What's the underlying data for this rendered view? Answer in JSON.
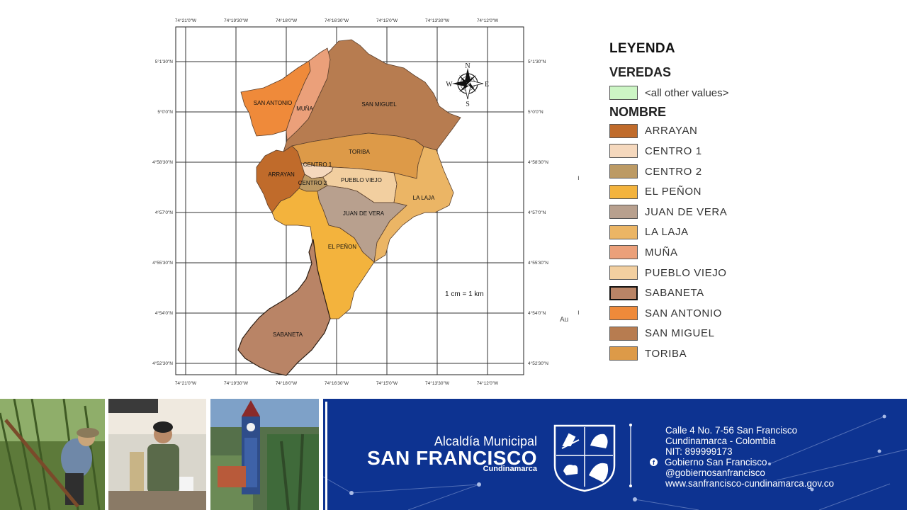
{
  "map": {
    "top_ticks": [
      "74°21'0\"W",
      "74°19'30\"W",
      "74°18'0\"W",
      "74°16'30\"W",
      "74°15'0\"W",
      "74°13'30\"W",
      "74°12'0\"W"
    ],
    "left_ticks": [
      "5°1'30\"N",
      "5°0'0\"N",
      "4°58'30\"N",
      "4°57'0\"N",
      "4°55'30\"N",
      "4°54'0\"N",
      "4°52'30\"N"
    ],
    "compass": {
      "n": "N",
      "s": "S",
      "e": "E",
      "w": "W"
    },
    "scale_text": "1 cm = 1 km",
    "regions": [
      {
        "id": "san-antonio",
        "label": "SAN ANTONIO",
        "color": "#ef8a3a"
      },
      {
        "id": "muna",
        "label": "MUÑA",
        "color": "#eba07a"
      },
      {
        "id": "san-miguel",
        "label": "SAN MIGUEL",
        "color": "#b77c50"
      },
      {
        "id": "toriba",
        "label": "TORIBA",
        "color": "#dd9a48"
      },
      {
        "id": "arrayan",
        "label": "ARRAYAN",
        "color": "#c06b2b"
      },
      {
        "id": "centro1",
        "label": "CENTRO 1",
        "color": "#f5d8bd"
      },
      {
        "id": "centro2",
        "label": "CENTRO 2",
        "color": "#bc9a64"
      },
      {
        "id": "pueblo-viejo",
        "label": "PUEBLO VIEJO",
        "color": "#f2cfa0"
      },
      {
        "id": "la-laja",
        "label": "LA LAJA",
        "color": "#ebb565"
      },
      {
        "id": "juan-de-vera",
        "label": "JUAN DE VERA",
        "color": "#b8a08e"
      },
      {
        "id": "el-penon",
        "label": "EL PEÑON",
        "color": "#f3b33d"
      },
      {
        "id": "sabaneta",
        "label": "SABANETA",
        "color": "#b98466"
      }
    ]
  },
  "legend": {
    "title": "LEYENDA",
    "veredas_heading": "VEREDAS",
    "other_values": {
      "label": "<all other values>",
      "color": "#ccf5c4"
    },
    "nombre_heading": "NOMBRE",
    "items": [
      {
        "label": "ARRAYAN",
        "color": "#c06b2b"
      },
      {
        "label": "CENTRO 1",
        "color": "#f5d8bd"
      },
      {
        "label": "CENTRO 2",
        "color": "#bc9a64"
      },
      {
        "label": "EL PEÑON",
        "color": "#f3b33d"
      },
      {
        "label": "JUAN DE VERA",
        "color": "#b8a08e"
      },
      {
        "label": "LA LAJA",
        "color": "#ebb565"
      },
      {
        "label": "MUÑA",
        "color": "#eba07a"
      },
      {
        "label": "PUEBLO VIEJO",
        "color": "#f2cfa0"
      },
      {
        "label": "SABANETA",
        "color": "#b98466"
      },
      {
        "label": "SAN ANTONIO",
        "color": "#ef8a3a"
      },
      {
        "label": "SAN MIGUEL",
        "color": "#b77c50"
      },
      {
        "label": "TORIBA",
        "color": "#dd9a48"
      }
    ]
  },
  "stray_text": "Au",
  "footer": {
    "brand_line1": "Alcaldía Municipal",
    "brand_line2": "SAN FRANCISCO",
    "brand_line3": "Cundinamarca",
    "contact": {
      "address": "Calle 4 No. 7-56 San Francisco",
      "location": "Cundinamarca - Colombia",
      "nit": "NIT: 899999173",
      "facebook": "Gobierno San Francisco",
      "handle": "@gobiernosanfrancisco",
      "website": "www.sanfrancisco-cundinamarca.gov.co"
    },
    "banner_color": "#0d3391"
  }
}
